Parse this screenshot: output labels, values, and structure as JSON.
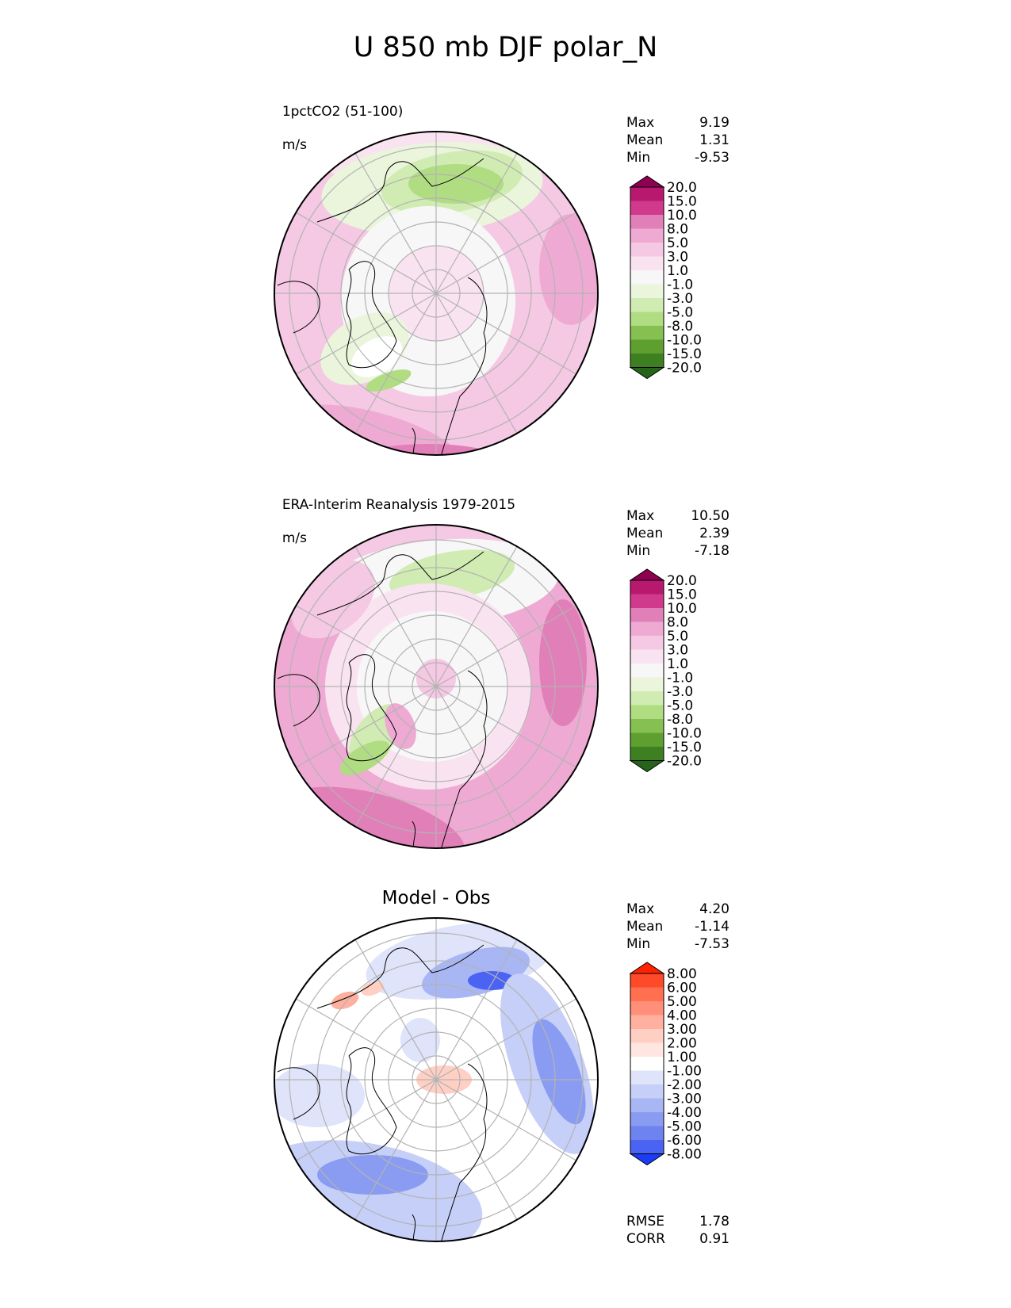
{
  "title": "U 850 mb DJF polar_N",
  "panels": [
    {
      "id": "model",
      "name": "1pctCO2 (51-100)",
      "units": "m/s",
      "stats": [
        {
          "label": "Max",
          "value": "9.19"
        },
        {
          "label": "Mean",
          "value": "1.31"
        },
        {
          "label": "Min",
          "value": "-9.53"
        }
      ]
    },
    {
      "id": "obs",
      "name": "ERA-Interim Reanalysis 1979-2015",
      "units": "m/s",
      "stats": [
        {
          "label": "Max",
          "value": "10.50"
        },
        {
          "label": "Mean",
          "value": "2.39"
        },
        {
          "label": "Min",
          "value": "-7.18"
        }
      ]
    },
    {
      "id": "diff",
      "name": "Model - Obs",
      "stats": [
        {
          "label": "Max",
          "value": "4.20"
        },
        {
          "label": "Mean",
          "value": "-1.14"
        },
        {
          "label": "Min",
          "value": "-7.53"
        }
      ],
      "metrics": [
        {
          "label": "RMSE",
          "value": "1.78"
        },
        {
          "label": "CORR",
          "value": "0.91"
        }
      ]
    }
  ],
  "colorbars": {
    "field": {
      "levels": [
        "20.0",
        "15.0",
        "10.0",
        "8.0",
        "5.0",
        "3.0",
        "1.0",
        "-1.0",
        "-3.0",
        "-5.0",
        "-8.0",
        "-10.0",
        "-15.0",
        "-20.0"
      ],
      "colors": [
        "#8e0152",
        "#b9186f",
        "#d0398c",
        "#e17fb8",
        "#eeaad3",
        "#f5c8e3",
        "#fae3f0",
        "#f7f7f7",
        "#eaf5dc",
        "#d0ecb2",
        "#b0dc82",
        "#86c050",
        "#5e9f30",
        "#3e7f21",
        "#25641a"
      ]
    },
    "diff": {
      "levels": [
        "8.00",
        "6.00",
        "5.00",
        "4.00",
        "3.00",
        "2.00",
        "1.00",
        "-1.00",
        "-2.00",
        "-3.00",
        "-4.00",
        "-5.00",
        "-6.00",
        "-8.00"
      ],
      "colors": [
        "#ff2200",
        "#ff4a2a",
        "#ff6f50",
        "#ff8f78",
        "#ffb09e",
        "#ffcfc4",
        "#ffe6e0",
        "#ffffff",
        "#dfe4fb",
        "#c5cff8",
        "#a8b6f4",
        "#8a9cf1",
        "#6e83ef",
        "#4a63f2",
        "#1a3cf6"
      ]
    }
  }
}
